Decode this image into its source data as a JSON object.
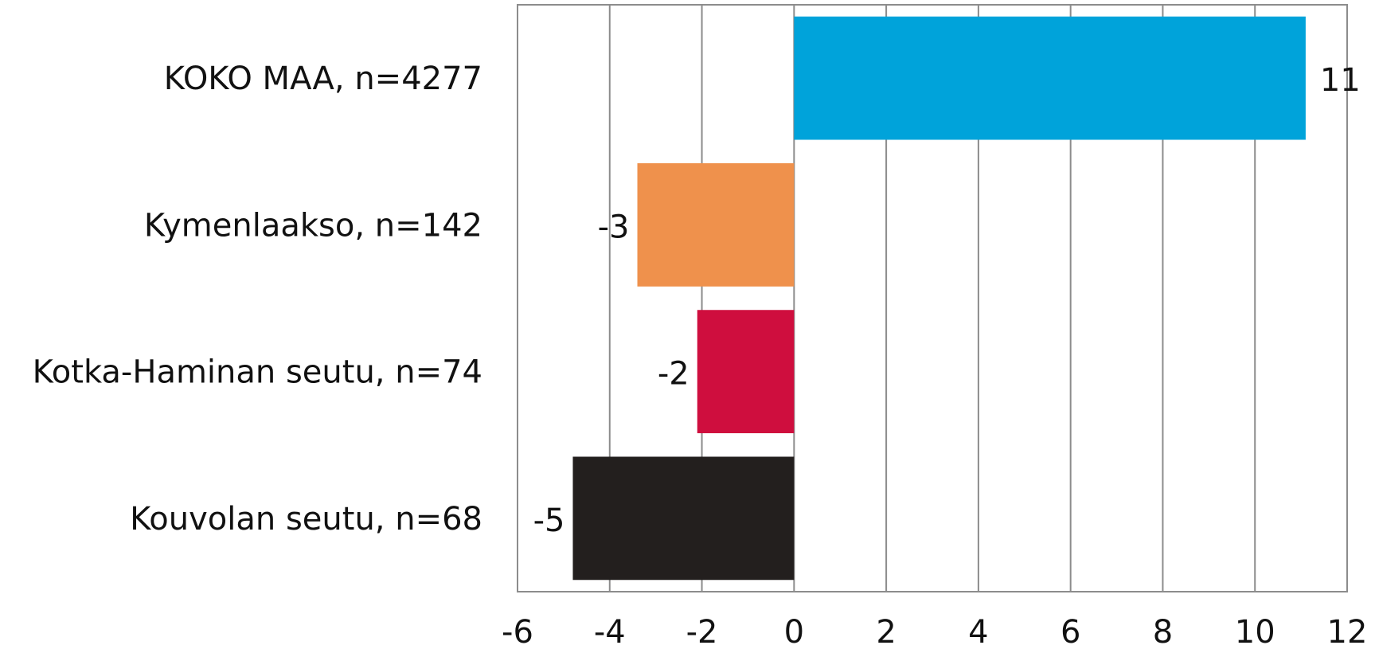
{
  "chart_data": {
    "type": "bar",
    "orientation": "horizontal",
    "categories": [
      "KOKO MAA, n=4277",
      "Kymenlaakso, n=142",
      "Kotka-Haminan seutu, n=74",
      "Kouvolan seutu, n=68"
    ],
    "values": [
      11.1,
      -3.4,
      -2.1,
      -4.8
    ],
    "value_labels": [
      "11",
      "-3",
      "-2",
      "-5"
    ],
    "bar_colors": [
      "#00a3da",
      "#ef914c",
      "#cf0e3e",
      "#231f1e"
    ],
    "x_ticks": [
      -6,
      -4,
      -2,
      0,
      2,
      4,
      6,
      8,
      10,
      12
    ],
    "xlim": [
      -6,
      12
    ],
    "grid": true,
    "legend": "none",
    "title": "",
    "xlabel": "",
    "ylabel": ""
  },
  "colors": {
    "grid": "#8c8c8c",
    "text": "#111111"
  }
}
